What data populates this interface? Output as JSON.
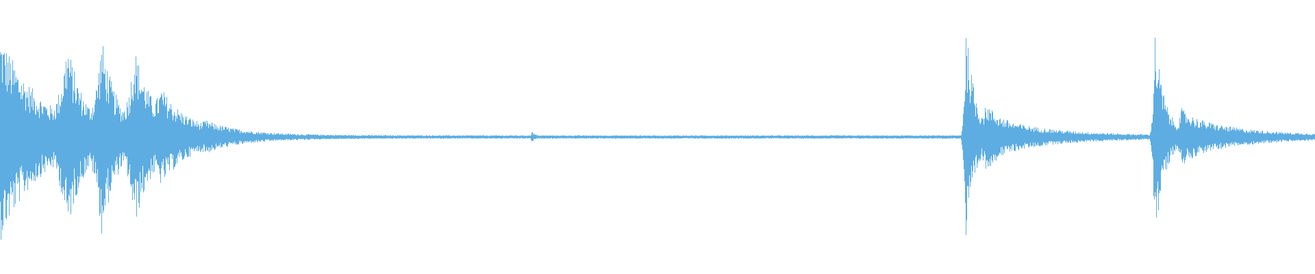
{
  "waveform": {
    "color": "#5dade2",
    "background": "#ffffff",
    "channels": 1
  }
}
